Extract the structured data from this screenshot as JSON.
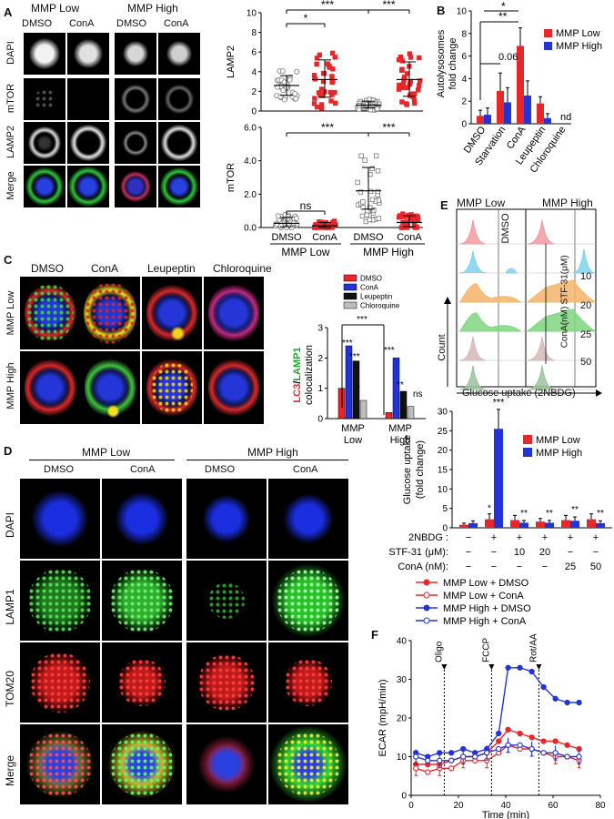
{
  "panels": {
    "A": "A",
    "B": "B",
    "C": "C",
    "D": "D",
    "E": "E",
    "F": "F"
  },
  "panelA": {
    "group_low": "MMP Low",
    "group_high": "MMP High",
    "col_labels": [
      "DMSO",
      "ConA",
      "DMSO",
      "ConA"
    ],
    "row_labels": [
      "DAPI",
      "mTOR",
      "LAMP2",
      "Merge"
    ]
  },
  "panelC": {
    "col_labels": [
      "DMSO",
      "ConA",
      "Leupeptin",
      "Chloroquine"
    ],
    "row_labels": [
      "MMP Low",
      "MMP High"
    ]
  },
  "panelD": {
    "group_low": "MMP Low",
    "group_high": "MMP High",
    "col_labels": [
      "DMSO",
      "ConA",
      "DMSO",
      "ConA"
    ],
    "row_labels": [
      "DAPI",
      "LAMP1",
      "TOM20",
      "Merge"
    ]
  },
  "panelE_flow": {
    "group_low": "MMP Low",
    "group_high": "MMP  High",
    "row_labels": [
      "DMSO",
      "10",
      "20",
      "25",
      "50"
    ],
    "side_labels": [
      "STF-31(μM)",
      "ConA(nM)"
    ],
    "ylabel": "Count",
    "xlabel": "Glucose uptake (2NBDG)"
  },
  "colors": {
    "red": "#e8272a",
    "blue": "#2234d6",
    "black": "#111111",
    "gray": "#bdbdbd"
  },
  "chart_data": [
    {
      "id": "A_lamp2",
      "type": "scatter",
      "ylabel": "LAMP2",
      "ylim": [
        0,
        10
      ],
      "yticks": [
        "0",
        "2",
        "4",
        "6",
        "8",
        "10"
      ],
      "categories": [
        "MMP Low DMSO",
        "MMP Low ConA",
        "MMP High DMSO",
        "MMP High ConA"
      ],
      "means": [
        2.6,
        3.2,
        0.6,
        3.2
      ],
      "sd_upper": [
        3.6,
        5.2,
        1.0,
        5.0
      ],
      "sd_lower": [
        1.6,
        1.4,
        0.3,
        1.5
      ],
      "significance": [
        "*",
        "***",
        "***"
      ]
    },
    {
      "id": "A_mtor",
      "type": "scatter",
      "ylabel": "mTOR",
      "ylim": [
        0,
        6
      ],
      "yticks": [
        "0.0",
        "2.0",
        "4.0",
        "6.0"
      ],
      "categories": [
        "DMSO",
        "ConA",
        "DMSO",
        "ConA"
      ],
      "groups": [
        "MMP Low",
        "MMP High"
      ],
      "means": [
        0.25,
        0.1,
        2.2,
        0.3
      ],
      "sd_upper": [
        0.6,
        0.3,
        3.6,
        0.7
      ],
      "sd_lower": [
        0.05,
        0.0,
        1.1,
        0.05
      ],
      "significance": [
        "ns",
        "***",
        "***"
      ]
    },
    {
      "id": "B",
      "type": "bar",
      "ylabel": "Autolysosomes fold change",
      "ylim": [
        0,
        10
      ],
      "yticks": [
        "0",
        "2",
        "4",
        "6",
        "8",
        "10"
      ],
      "categories": [
        "DMSO",
        "Starvation",
        "ConA",
        "Leupeptin",
        "Chloroquine"
      ],
      "series": [
        {
          "name": "MMP Low",
          "values": [
            0.7,
            2.9,
            6.9,
            1.8,
            0
          ],
          "err": [
            0.5,
            1.6,
            1.6,
            0.6,
            0
          ]
        },
        {
          "name": "MMP High",
          "values": [
            0.8,
            1.9,
            2.5,
            0.5,
            0
          ],
          "err": [
            0.6,
            1.3,
            1.3,
            0.4,
            0
          ]
        }
      ],
      "annotations": [
        "0.06",
        "**",
        "*",
        "nd"
      ]
    },
    {
      "id": "C",
      "type": "bar",
      "ylabel_red": "LC3",
      "ylabel_sep": "/",
      "ylabel_green": "LAMP1",
      "ylabel_rest": "colocalization",
      "ylim": [
        0,
        3
      ],
      "yticks": [
        "0",
        "1",
        "2",
        "3"
      ],
      "categories": [
        "MMP Low",
        "MMP High"
      ],
      "series": [
        {
          "name": "DMSO",
          "values": [
            1.0,
            0.2
          ]
        },
        {
          "name": "ConA",
          "values": [
            2.4,
            2.0
          ]
        },
        {
          "name": "Leupeptin",
          "values": [
            1.9,
            0.9
          ]
        },
        {
          "name": "Chloroquine",
          "values": [
            0.6,
            0.4
          ]
        }
      ],
      "annotations": [
        "***",
        "***",
        "***",
        "*",
        "***",
        "**",
        "ns",
        "***"
      ]
    },
    {
      "id": "E",
      "type": "bar",
      "ylabel": "Glucose uptake (fold change)",
      "ylim": [
        0,
        30
      ],
      "yticks": [
        "0",
        "5",
        "10",
        "15",
        "20",
        "25",
        "30"
      ],
      "series": [
        {
          "name": "MMP Low",
          "values": [
            0.8,
            2.2,
            2.0,
            1.6,
            2.0,
            2.2
          ],
          "err": [
            0.4,
            1.4,
            1.2,
            0.8,
            1.2,
            1.4
          ]
        },
        {
          "name": "MMP High",
          "values": [
            1.2,
            25.5,
            1.3,
            1.3,
            1.8,
            1.2
          ],
          "err": [
            0.6,
            5.0,
            0.6,
            0.6,
            1.0,
            0.6
          ]
        }
      ],
      "annotations": [
        "*",
        "***",
        "**",
        "**",
        "**",
        "**"
      ],
      "row_labels": [
        "2NBDG :",
        "STF-31 (μM):",
        "ConA (nM):"
      ],
      "rows": [
        [
          "−",
          "+",
          "+",
          "+",
          "+",
          "+"
        ],
        [
          "−",
          "−",
          "10",
          "20",
          "−",
          "−"
        ],
        [
          "−",
          "−",
          "−",
          "−",
          "25",
          "50"
        ]
      ]
    },
    {
      "id": "F",
      "type": "line",
      "xlabel": "Time (min)",
      "ylabel": "ECAR (mpH/min)",
      "xlim": [
        0,
        80
      ],
      "ylim": [
        0,
        40
      ],
      "xticks": [
        "0",
        "20",
        "40",
        "60",
        "80"
      ],
      "yticks": [
        "0",
        "10",
        "20",
        "30",
        "40"
      ],
      "injections": [
        {
          "label": "Oligo",
          "x": 14
        },
        {
          "label": "FCCP",
          "x": 34
        },
        {
          "label": "Rot/AA",
          "x": 54
        }
      ],
      "x": [
        2,
        7,
        12,
        17,
        22,
        27,
        32,
        37,
        41,
        46,
        51,
        56,
        61,
        66,
        71
      ],
      "series": [
        {
          "name": "MMP Low + DMSO",
          "values": [
            8,
            8,
            8,
            9,
            10,
            10,
            11,
            14,
            17,
            16,
            15,
            14,
            14,
            13,
            12
          ],
          "filled": true,
          "color": "#e8272a"
        },
        {
          "name": "MMP Low + ConA",
          "values": [
            7,
            6,
            7,
            7,
            9,
            9,
            9,
            11,
            13,
            12,
            12,
            11,
            10,
            10,
            9
          ],
          "filled": false,
          "color": "#e8272a"
        },
        {
          "name": "MMP High + DMSO",
          "values": [
            11,
            10,
            11,
            11,
            12,
            11,
            12,
            16,
            33,
            33,
            32,
            28,
            25,
            24,
            24
          ],
          "filled": true,
          "color": "#2234d6"
        },
        {
          "name": "MMP High + ConA",
          "values": [
            10,
            9,
            9,
            9,
            10,
            10,
            11,
            12,
            13,
            13,
            12,
            11,
            11,
            10,
            10
          ],
          "filled": false,
          "color": "#2234d6"
        }
      ]
    }
  ]
}
